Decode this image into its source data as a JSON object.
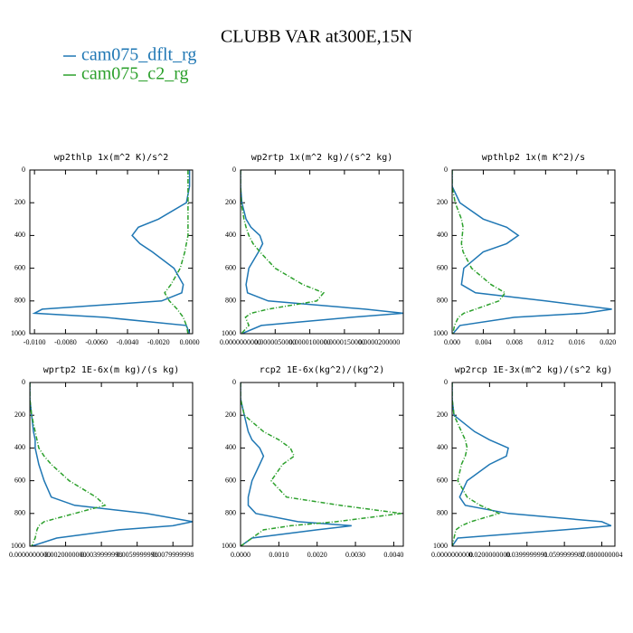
{
  "title": "CLUBB VAR at300E,15N",
  "chart_data": [
    {
      "type": "line",
      "title": "wp2thlp  1x(m^2 K)/s^2",
      "levels": [
        0,
        100,
        200,
        300,
        350,
        400,
        450,
        500,
        600,
        700,
        750,
        800,
        850,
        875,
        900,
        950,
        1000
      ],
      "series": [
        {
          "name": "cam075_dflt_rg",
          "color": "#1f77b4",
          "linestyle": "solid",
          "values": [
            0,
            0,
            -0.0002,
            -0.002,
            -0.0033,
            -0.0037,
            -0.0032,
            -0.0024,
            -0.001,
            -0.0004,
            -0.0005,
            -0.0018,
            -0.0095,
            -0.01,
            -0.0055,
            -0.0002,
            0
          ]
        },
        {
          "name": "cam075_c2_rg",
          "color": "#2ca02c",
          "linestyle": "dashed",
          "values": [
            -0.0001,
            -0.0001,
            -0.0001,
            -0.0001,
            -0.0001,
            -0.0001,
            -0.0002,
            -0.0003,
            -0.0006,
            -0.0012,
            -0.0016,
            -0.0013,
            -0.0008,
            -0.0006,
            -0.0004,
            -0.0002,
            -0.0001
          ]
        }
      ],
      "xlim": [
        -0.0103,
        0.0002
      ],
      "xticks": [
        {
          "value": -0.01,
          "label": "-0.0100"
        },
        {
          "value": -0.008,
          "label": "-0.0080"
        },
        {
          "value": -0.006,
          "label": "-0.0060"
        },
        {
          "value": -0.004,
          "label": "-0.0040"
        },
        {
          "value": -0.002,
          "label": "-0.0020"
        },
        {
          "value": 0,
          "label": "0.0000"
        }
      ],
      "ylim": [
        0,
        1000
      ],
      "y_inverted": true,
      "yticks": [
        0,
        200,
        400,
        600,
        800,
        1000
      ]
    },
    {
      "type": "line",
      "title": "wp2rtp  1x(m^2 kg)/(s^2 kg)",
      "levels": [
        0,
        100,
        200,
        300,
        350,
        400,
        450,
        500,
        600,
        700,
        750,
        800,
        850,
        875,
        900,
        950,
        1000
      ],
      "series": [
        {
          "name": "cam075_dflt_rg",
          "color": "#1f77b4",
          "linestyle": "solid",
          "values": [
            0,
            0,
            2e-07,
            8e-07,
            1.5e-06,
            2.8e-06,
            3.2e-06,
            2.6e-06,
            1.2e-06,
            8e-07,
            1e-06,
            4e-06,
            1.8e-05,
            2.35e-05,
            1.6e-05,
            3e-06,
            2e-07
          ]
        },
        {
          "name": "cam075_c2_rg",
          "color": "#2ca02c",
          "linestyle": "dashed",
          "values": [
            0,
            0,
            1e-07,
            5e-07,
            8e-07,
            1.2e-06,
            1.8e-06,
            2.8e-06,
            5e-06,
            9e-06,
            1.2e-05,
            1.1e-05,
            4e-06,
            1.5e-06,
            7e-07,
            1.2e-06,
            1e-07
          ]
        }
      ],
      "xlim": [
        0,
        2.35e-05
      ],
      "xticks": [
        {
          "value": 0,
          "label": "0.0000000000"
        },
        {
          "value": 5e-06,
          "label": "0.0000050000"
        },
        {
          "value": 1e-05,
          "label": "0.0000100000"
        },
        {
          "value": 1.5e-05,
          "label": "0.0000150000"
        },
        {
          "value": 2e-05,
          "label": "0.0000200000"
        }
      ],
      "ylim": [
        0,
        1000
      ],
      "y_inverted": true,
      "yticks": [
        0,
        200,
        400,
        600,
        800,
        1000
      ]
    },
    {
      "type": "line",
      "title": "wpthlp2  1x(m K^2)/s",
      "levels": [
        0,
        100,
        200,
        300,
        350,
        400,
        450,
        500,
        600,
        700,
        750,
        800,
        850,
        875,
        900,
        950,
        1000
      ],
      "series": [
        {
          "name": "cam075_dflt_rg",
          "color": "#1f77b4",
          "linestyle": "solid",
          "values": [
            0,
            0,
            0.001,
            0.004,
            0.007,
            0.0085,
            0.007,
            0.004,
            0.0015,
            0.0012,
            0.003,
            0.012,
            0.0205,
            0.017,
            0.008,
            0.001,
            0.0001
          ]
        },
        {
          "name": "cam075_c2_rg",
          "color": "#2ca02c",
          "linestyle": "dashed",
          "values": [
            0,
            0,
            0.0004,
            0.0012,
            0.0014,
            0.0013,
            0.0012,
            0.0014,
            0.0025,
            0.005,
            0.0068,
            0.006,
            0.003,
            0.0015,
            0.0008,
            0.0003,
            0.0001
          ]
        }
      ],
      "xlim": [
        0,
        0.0209
      ],
      "xticks": [
        {
          "value": 0,
          "label": "0.000"
        },
        0.004,
        0.008,
        0.012,
        0.016,
        {
          "value": 0.02,
          "label": "0.020"
        }
      ],
      "ylim": [
        0,
        1000
      ],
      "y_inverted": true,
      "yticks": [
        0,
        200,
        400,
        600,
        800,
        1000
      ]
    },
    {
      "type": "line",
      "title": "wprtp2  1E-6x(m kg)/(s kg)",
      "levels": [
        0,
        100,
        200,
        300,
        350,
        400,
        450,
        500,
        600,
        700,
        750,
        800,
        850,
        875,
        900,
        950,
        1000
      ],
      "series": [
        {
          "name": "cam075_dflt_rg",
          "color": "#1f77b4",
          "linestyle": "solid",
          "values": [
            0,
            0,
            0.0001,
            0.0002,
            0.0003,
            0.0003,
            0.0004,
            0.0005,
            0.0008,
            0.0012,
            0.0025,
            0.0065,
            0.0091,
            0.008,
            0.005,
            0.0015,
            0.0001
          ]
        },
        {
          "name": "cam075_c2_rg",
          "color": "#2ca02c",
          "linestyle": "dashed",
          "values": [
            0,
            0,
            0.0001,
            0.0003,
            0.0004,
            0.0005,
            0.0008,
            0.0012,
            0.0022,
            0.0037,
            0.0042,
            0.0025,
            0.0008,
            0.0005,
            0.0004,
            0.0003,
            0.0001
          ]
        }
      ],
      "xlim": [
        0,
        0.0091
      ],
      "xticks": [
        {
          "value": 0,
          "label": "0.0000000000"
        },
        {
          "value": 0.002,
          "label": "0.0020000000"
        },
        {
          "value": 0.004,
          "label": "0.0039999998"
        },
        {
          "value": 0.006,
          "label": "0.0059999998"
        },
        {
          "value": 0.008,
          "label": "0.0079999998"
        }
      ],
      "ylim": [
        0,
        1000
      ],
      "y_inverted": true,
      "yticks": [
        0,
        200,
        400,
        600,
        800,
        1000
      ]
    },
    {
      "type": "line",
      "title": "rcp2  1E-6x(kg^2)/(kg^2)",
      "levels": [
        0,
        100,
        200,
        300,
        350,
        400,
        450,
        500,
        600,
        700,
        750,
        800,
        850,
        875,
        900,
        950,
        1000
      ],
      "series": [
        {
          "name": "cam075_dflt_rg",
          "color": "#1f77b4",
          "linestyle": "solid",
          "values": [
            0,
            0,
            0.0001,
            0.0002,
            0.0003,
            0.0005,
            0.0006,
            0.0005,
            0.0003,
            0.0002,
            0.0002,
            0.0004,
            0.0015,
            0.0029,
            0.002,
            0.0003,
            0
          ]
        },
        {
          "name": "cam075_c2_rg",
          "color": "#2ca02c",
          "linestyle": "dashed",
          "values": [
            0,
            0,
            0.0001,
            0.0006,
            0.001,
            0.0013,
            0.0014,
            0.0011,
            0.0008,
            0.0012,
            0.0026,
            0.0042,
            0.0025,
            0.0013,
            0.0006,
            0.0003,
            0
          ]
        }
      ],
      "xlim": [
        0,
        0.00425
      ],
      "xticks": [
        {
          "value": 0,
          "label": "0.0000"
        },
        {
          "value": 0.001,
          "label": "0.0010"
        },
        {
          "value": 0.002,
          "label": "0.0020"
        },
        {
          "value": 0.003,
          "label": "0.0030"
        },
        {
          "value": 0.004,
          "label": "0.0040"
        }
      ],
      "ylim": [
        0,
        1000
      ],
      "y_inverted": true,
      "yticks": [
        0,
        200,
        400,
        600,
        800,
        1000
      ]
    },
    {
      "type": "line",
      "title": "wp2rcp  1E-3x(m^2 kg)/(s^2 kg)",
      "levels": [
        0,
        100,
        200,
        300,
        350,
        400,
        450,
        500,
        600,
        700,
        750,
        800,
        850,
        875,
        900,
        950,
        1000
      ],
      "series": [
        {
          "name": "cam075_dflt_rg",
          "color": "#1f77b4",
          "linestyle": "solid",
          "values": [
            0,
            0,
            0.001,
            0.012,
            0.02,
            0.03,
            0.029,
            0.02,
            0.008,
            0.004,
            0.007,
            0.03,
            0.08,
            0.085,
            0.06,
            0.003,
            0
          ]
        },
        {
          "name": "cam075_c2_rg",
          "color": "#2ca02c",
          "linestyle": "dashed",
          "values": [
            0,
            0,
            0.001,
            0.005,
            0.007,
            0.008,
            0.007,
            0.005,
            0.003,
            0.008,
            0.015,
            0.025,
            0.01,
            0.005,
            0.002,
            0.001,
            0
          ]
        }
      ],
      "xlim": [
        0,
        0.087
      ],
      "xticks": [
        {
          "value": 0,
          "label": "0.0000000000"
        },
        {
          "value": 0.02,
          "label": "0.0200000000"
        },
        {
          "value": 0.04,
          "label": "0.0399999991"
        },
        {
          "value": 0.06,
          "label": "0.0599999987"
        },
        {
          "value": 0.08,
          "label": "0.0800000004"
        }
      ],
      "ylim": [
        0,
        1000
      ],
      "y_inverted": true,
      "yticks": [
        0,
        200,
        400,
        600,
        800,
        1000
      ]
    }
  ]
}
